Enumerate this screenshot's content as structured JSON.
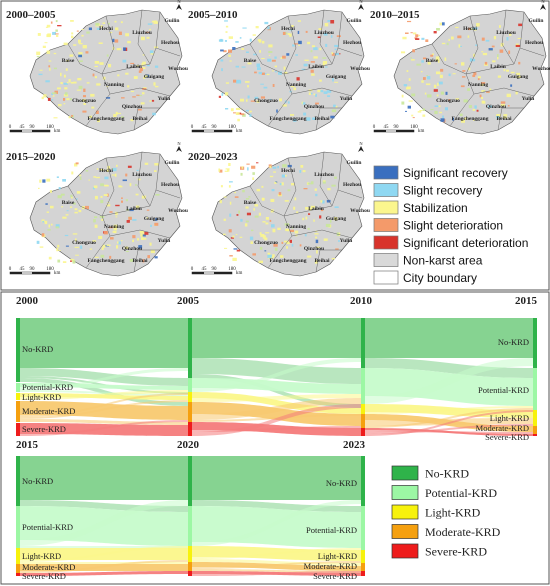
{
  "maps": [
    {
      "period": "2000–2005"
    },
    {
      "period": "2005–2010"
    },
    {
      "period": "2010–2015"
    },
    {
      "period": "2015–2020"
    },
    {
      "period": "2020–2023"
    }
  ],
  "city_labels": [
    "Guilin",
    "Hechi",
    "Liuzhou",
    "Hezhou",
    "Baise",
    "Laibin",
    "Wuzhou",
    "Guigang",
    "Nanning",
    "Chongzuo",
    "Yulin",
    "Qinzhou",
    "Fangchenggang",
    "Beihai"
  ],
  "scale_bar": {
    "ticks": [
      "0",
      "45",
      "90",
      "180"
    ],
    "unit": "km"
  },
  "north_label": "N",
  "map_legend": [
    {
      "label": "Significant recovery",
      "color": "#3a6fbf"
    },
    {
      "label": "Slight recovery",
      "color": "#8fd8f2"
    },
    {
      "label": "Stabilization",
      "color": "#fbf68e"
    },
    {
      "label": "Slight deterioration",
      "color": "#f49a6a"
    },
    {
      "label": "Significant deterioration",
      "color": "#d8332b"
    },
    {
      "label": "Non-karst area",
      "color": "#d9d9d9"
    },
    {
      "label": "City boundary",
      "color": "#ffffff"
    }
  ],
  "sankey": {
    "top": {
      "years": [
        "2000",
        "2005",
        "2010",
        "2015"
      ]
    },
    "bottom": {
      "years": [
        "2015",
        "2020",
        "2023"
      ]
    },
    "node_labels": [
      "No-KRD",
      "Potential-KRD",
      "Light-KRD",
      "Moderate-KRD",
      "Severe-KRD"
    ]
  },
  "sankey_legend": [
    {
      "label": "No-KRD",
      "color": "#2fb34a"
    },
    {
      "label": "Potential-KRD",
      "color": "#9cf7a4"
    },
    {
      "label": "Light-KRD",
      "color": "#f7f20c"
    },
    {
      "label": "Moderate-KRD",
      "color": "#f5a00f"
    },
    {
      "label": "Severe-KRD",
      "color": "#ee1c1c"
    }
  ]
}
